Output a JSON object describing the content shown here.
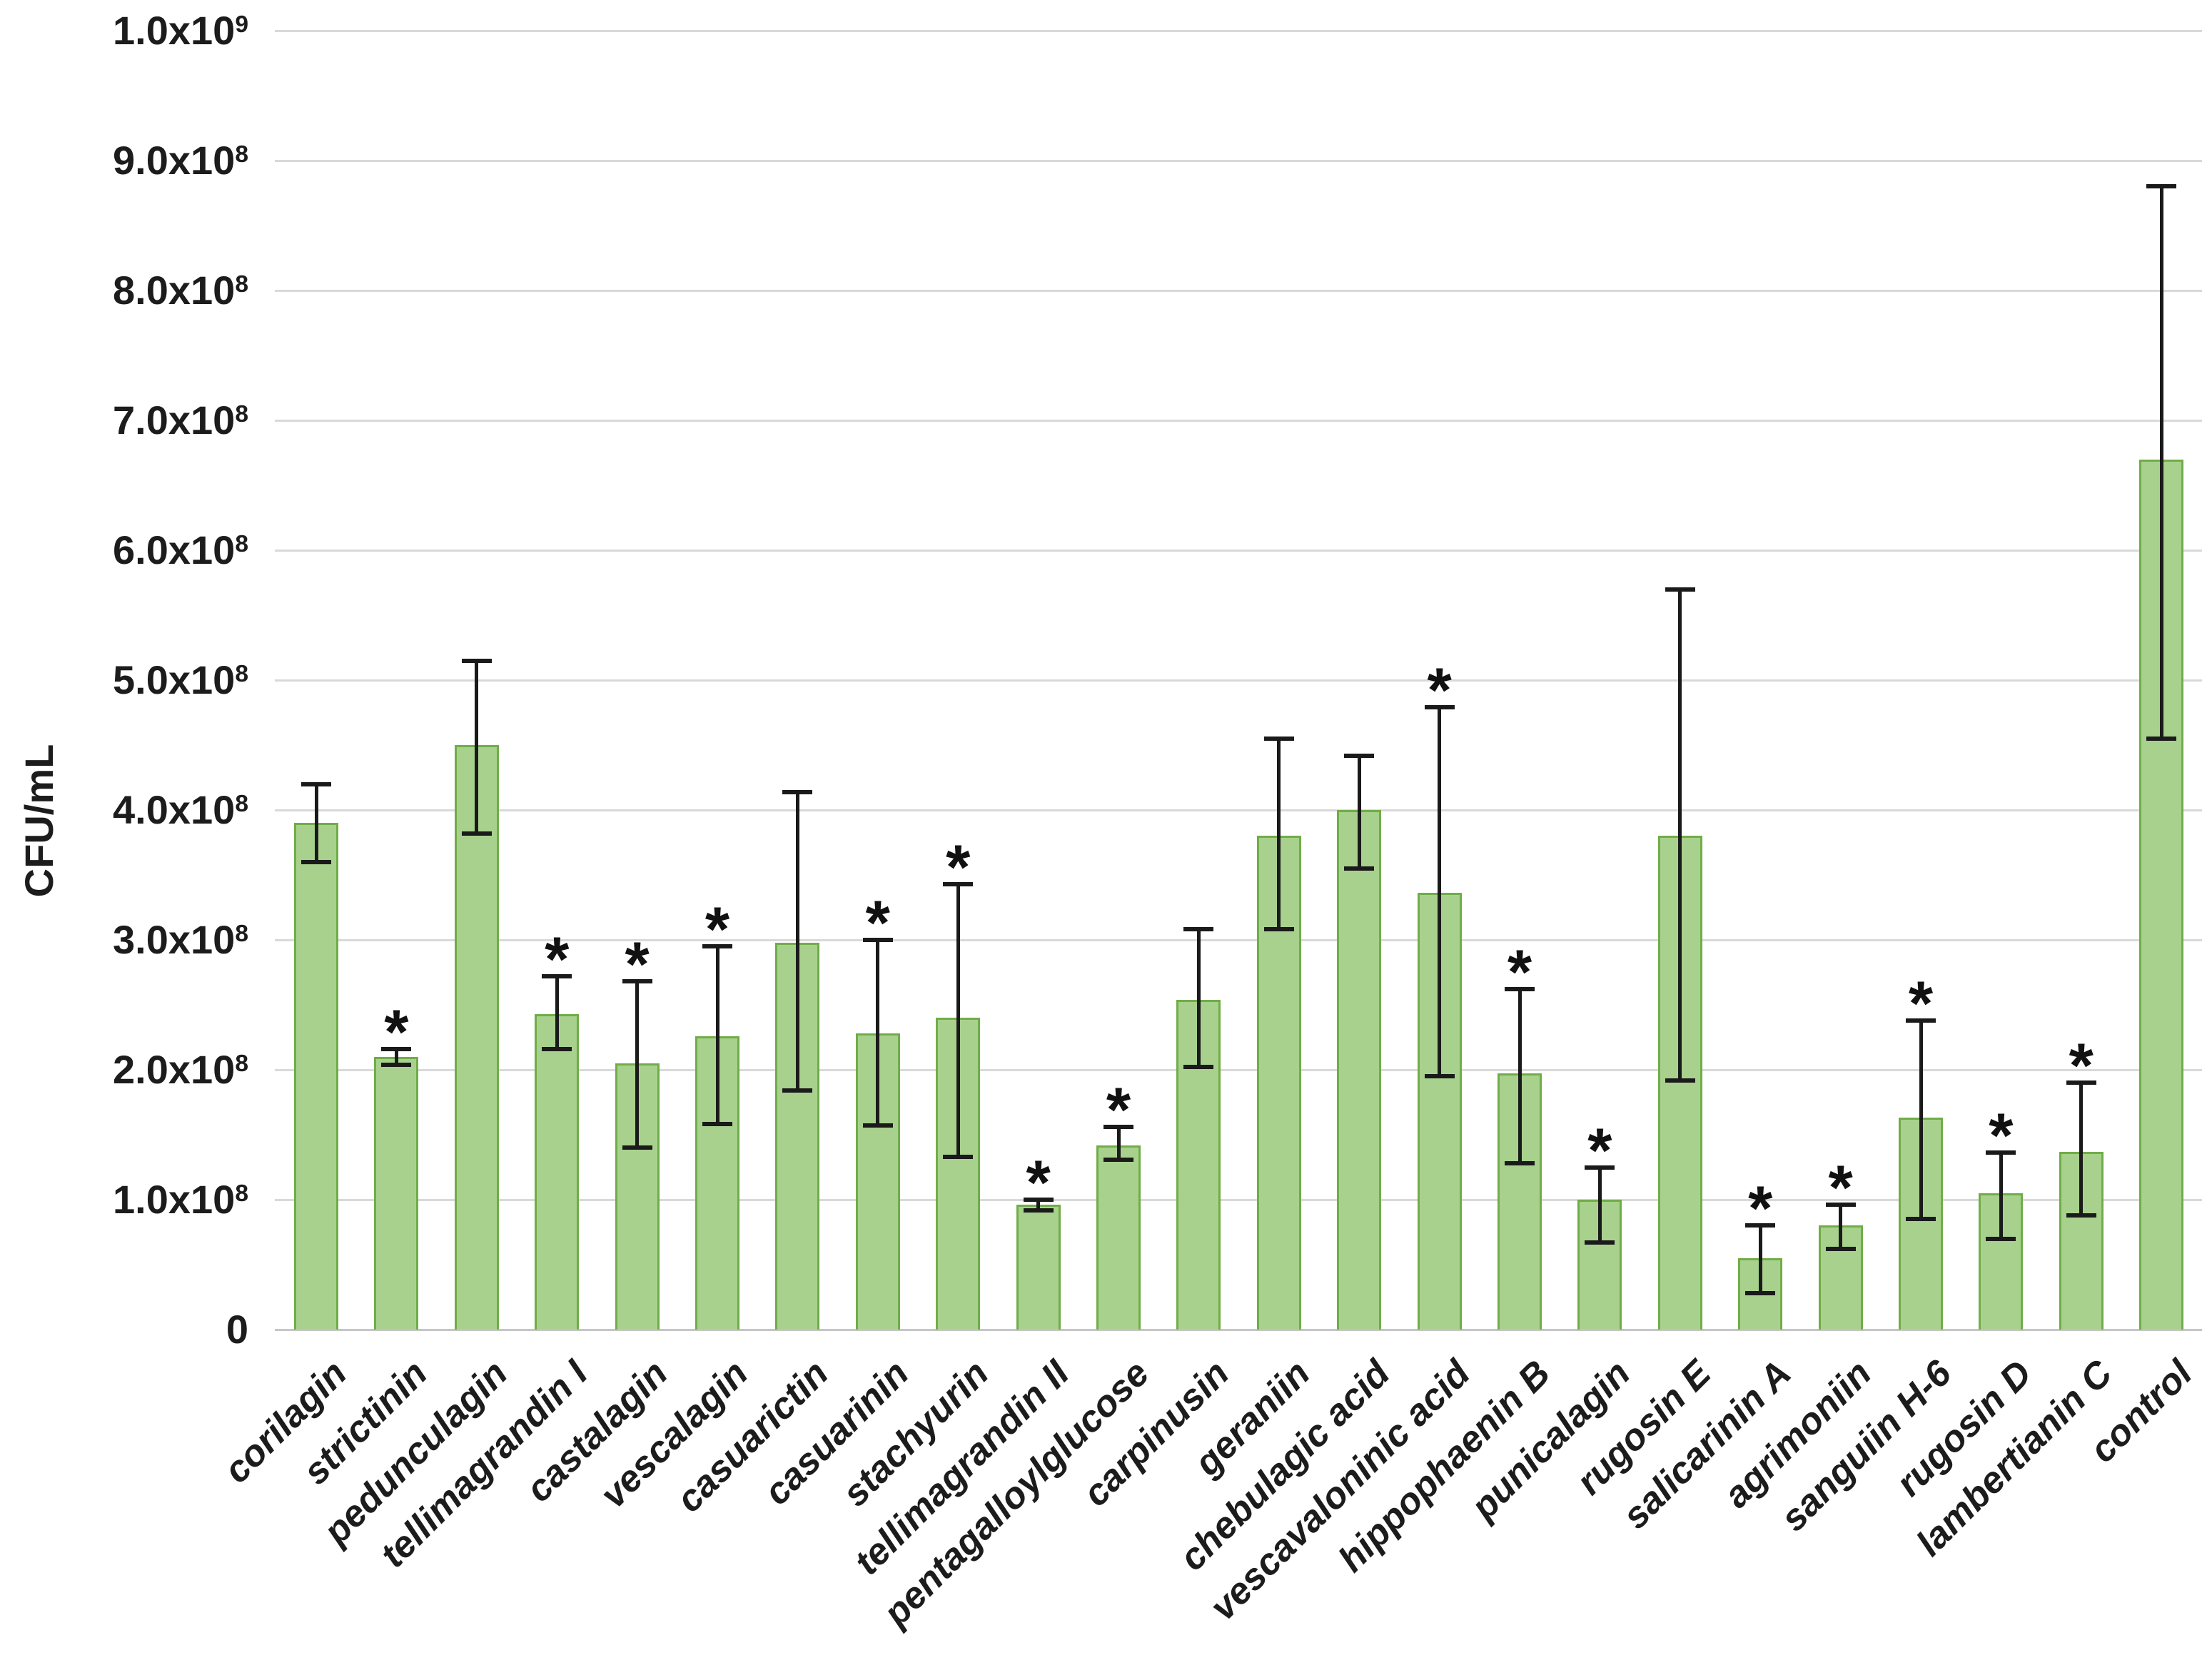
{
  "chart_data": {
    "type": "bar",
    "title": "",
    "xlabel": "",
    "ylabel": "CFU/mL",
    "ylim": [
      0,
      1000000000.0
    ],
    "grid": true,
    "legend": false,
    "star_symbol": "*",
    "bar_color": "#a9d18e",
    "bar_border_color": "#70ad47",
    "gridline_color": "#d9d9d9",
    "baseline_color": "#c6c6c6",
    "error_bar_color": "#1a1a1a",
    "categories": [
      "corilagin",
      "strictinin",
      "pedunculagin",
      "tellimagrandin I",
      "castalagin",
      "vescalagin",
      "casuarictin",
      "casuarinin",
      "stachyurin",
      "tellimagrandin II",
      "pentagalloylglucose",
      "carpinusin",
      "geraniin",
      "chebulagic acid",
      "vescavaloninic acid",
      "hippophaenin B",
      "punicalagin",
      "rugosin E",
      "salicarinin A",
      "agrimoniin",
      "sanguiin H-6",
      "rugosin D",
      "lambertianin C",
      "control"
    ],
    "values": [
      390000000.0,
      210000000.0,
      450000000.0,
      243000000.0,
      205000000.0,
      226000000.0,
      298000000.0,
      228000000.0,
      240000000.0,
      96000000.0,
      142000000.0,
      254000000.0,
      380000000.0,
      400000000.0,
      336000000.0,
      197000000.0,
      100000000.0,
      380000000.0,
      55000000.0,
      80000000.0,
      163000000.0,
      105000000.0,
      137000000.0,
      670000000.0
    ],
    "error_high": [
      420000000.0,
      216000000.0,
      515000000.0,
      272000000.0,
      268000000.0,
      295000000.0,
      414000000.0,
      300000000.0,
      343000000.0,
      100000000.0,
      156000000.0,
      308000000.0,
      455000000.0,
      442000000.0,
      479000000.0,
      262000000.0,
      125000000.0,
      570000000.0,
      80000000.0,
      96000000.0,
      238000000.0,
      136000000.0,
      190000000.0,
      880000000.0
    ],
    "error_low": [
      360000000.0,
      204000000.0,
      382000000.0,
      216000000.0,
      140000000.0,
      158000000.0,
      184000000.0,
      157000000.0,
      133000000.0,
      92000000.0,
      131000000.0,
      202000000.0,
      308000000.0,
      355000000.0,
      195000000.0,
      128000000.0,
      67000000.0,
      192000000.0,
      28000000.0,
      62000000.0,
      85000000.0,
      70000000.0,
      88000000.0,
      455000000.0
    ],
    "significant": [
      false,
      true,
      false,
      true,
      true,
      true,
      false,
      true,
      true,
      true,
      true,
      false,
      false,
      false,
      true,
      true,
      true,
      false,
      true,
      true,
      true,
      true,
      true,
      false
    ],
    "yticks": [
      {
        "label": "0",
        "sup": "",
        "value": 0
      },
      {
        "label": "1.0x10",
        "sup": "8",
        "value": 100000000.0
      },
      {
        "label": "2.0x10",
        "sup": "8",
        "value": 200000000.0
      },
      {
        "label": "3.0x10",
        "sup": "8",
        "value": 300000000.0
      },
      {
        "label": "4.0x10",
        "sup": "8",
        "value": 400000000.0
      },
      {
        "label": "5.0x10",
        "sup": "8",
        "value": 500000000.0
      },
      {
        "label": "6.0x10",
        "sup": "8",
        "value": 600000000.0
      },
      {
        "label": "7.0x10",
        "sup": "8",
        "value": 700000000.0
      },
      {
        "label": "8.0x10",
        "sup": "8",
        "value": 800000000.0
      },
      {
        "label": "9.0x10",
        "sup": "8",
        "value": 900000000.0
      },
      {
        "label": "1.0x10",
        "sup": "9",
        "value": 1000000000.0
      }
    ]
  }
}
